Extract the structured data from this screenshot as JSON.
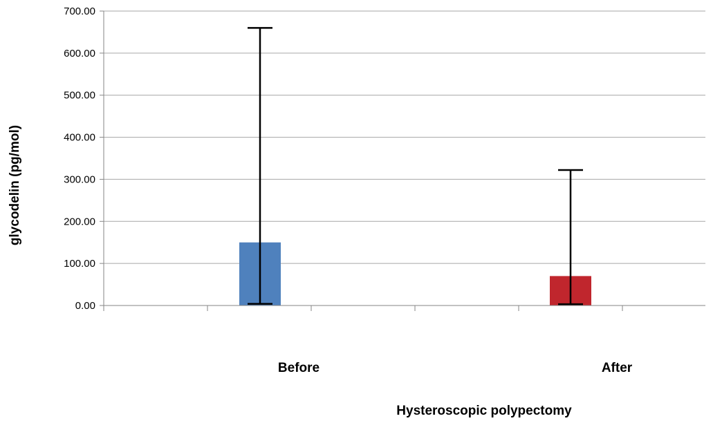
{
  "chart_data": {
    "type": "bar",
    "title": "",
    "xlabel": "Hysteroscopic polypectomy",
    "ylabel": "glycodelin (pg/mol)",
    "ylim": [
      0,
      700
    ],
    "yticks": [
      0,
      100,
      200,
      300,
      400,
      500,
      600,
      700
    ],
    "ytick_labels": [
      "0.00",
      "100.00",
      "200.00",
      "300.00",
      "400.00",
      "500.00",
      "600.00",
      "700.00"
    ],
    "grid": true,
    "legend": "none",
    "categories": [
      "Before",
      "After"
    ],
    "values": [
      150,
      70
    ],
    "error_low": [
      4,
      3
    ],
    "error_high": [
      660,
      322
    ],
    "colors": [
      "#4f81bd",
      "#c0262d"
    ]
  }
}
